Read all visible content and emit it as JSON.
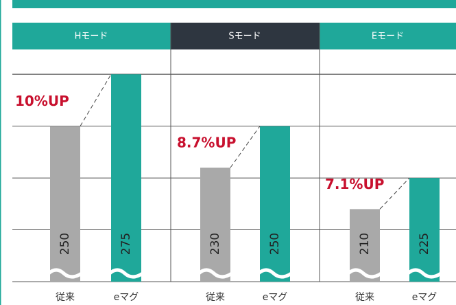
{
  "chart_data": [
    {
      "type": "bar",
      "title": "Hモード",
      "header_color": "#1fa89a",
      "categories": [
        "従来",
        "eマグ"
      ],
      "values": [
        250,
        275
      ],
      "colors": [
        "#a9a9a9",
        "#1fa89a"
      ],
      "annotation": "10%UP",
      "ylim": [
        175,
        287
      ],
      "yticks": [
        175,
        200,
        225,
        250,
        275
      ],
      "grid": true
    },
    {
      "type": "bar",
      "title": "Sモード",
      "header_color": "#2e3640",
      "categories": [
        "従来",
        "eマグ"
      ],
      "values": [
        230,
        250
      ],
      "colors": [
        "#a9a9a9",
        "#1fa89a"
      ],
      "annotation": "8.7%UP",
      "ylim": [
        175,
        287
      ],
      "yticks": [
        175,
        200,
        225,
        250,
        275
      ],
      "grid": true
    },
    {
      "type": "bar",
      "title": "Eモード",
      "header_color": "#1fa89a",
      "categories": [
        "従来",
        "eマグ"
      ],
      "values": [
        210,
        225
      ],
      "colors": [
        "#a9a9a9",
        "#1fa89a"
      ],
      "annotation": "7.1%UP",
      "ylim": [
        175,
        287
      ],
      "yticks": [
        175,
        200,
        225,
        250,
        275
      ],
      "grid": true
    }
  ]
}
